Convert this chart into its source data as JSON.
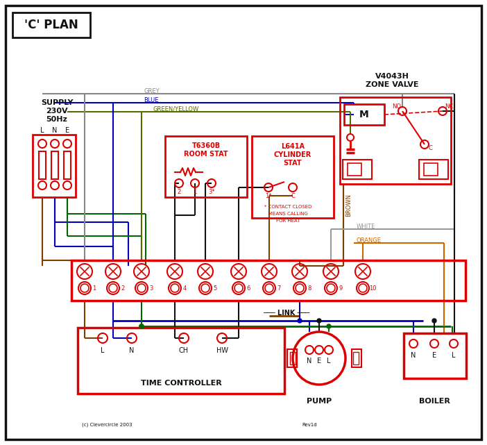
{
  "bg": "#ffffff",
  "RED": "#dd0000",
  "BLUE": "#0000bb",
  "GREEN": "#006600",
  "GREY": "#888888",
  "BROWN": "#7b3f00",
  "ORANGE": "#cc6600",
  "BLACK": "#111111",
  "GY": "#556b00",
  "WHITE_W": "#999999",
  "title": "'C' PLAN",
  "supply_title": "SUPPLY\n230V\n50Hz",
  "zone_valve_title1": "V4043H",
  "zone_valve_title2": "ZONE VALVE",
  "room_stat_title1": "T6360B",
  "room_stat_title2": "ROOM STAT",
  "cyl_stat_title1": "L641A",
  "cyl_stat_title2": "CYLINDER",
  "cyl_stat_title3": "STAT",
  "tc_title": "TIME CONTROLLER",
  "pump_title": "PUMP",
  "boiler_title": "BOILER",
  "link_label": "LINK",
  "motor_label": "M",
  "contact_note1": "* CONTACT CLOSED",
  "contact_note2": "MEANS CALLING",
  "contact_note3": "FOR HEAT",
  "copyright": "(c) Clevercircle 2003",
  "rev": "Rev1d",
  "lbl_grey": "GREY",
  "lbl_blue": "BLUE",
  "lbl_gy": "GREEN/YELLOW",
  "lbl_brown": "BROWN",
  "lbl_white": "WHITE",
  "lbl_orange": "ORANGE",
  "lbl_no": "NO",
  "lbl_nc": "NC",
  "lbl_c": "C",
  "supply_lne": [
    "L",
    "N",
    "E"
  ],
  "tc_lne": [
    "L",
    "N",
    "CH",
    "HW"
  ],
  "pump_nel": [
    "N",
    "E",
    "L"
  ],
  "boiler_nel": [
    "N",
    "E",
    "L"
  ],
  "room_term": [
    "2",
    "1",
    "3*"
  ],
  "cyl_term": [
    "1*",
    "C"
  ],
  "terminals": [
    "1",
    "2",
    "3",
    "4",
    "5",
    "6",
    "7",
    "8",
    "9",
    "10"
  ]
}
